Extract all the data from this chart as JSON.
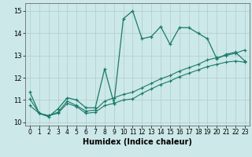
{
  "title": "",
  "xlabel": "Humidex (Indice chaleur)",
  "ylabel": "",
  "background_color": "#cce8e8",
  "grid_color": "#b0cccc",
  "line_color": "#1a7a6a",
  "xlim": [
    -0.5,
    23.5
  ],
  "ylim": [
    9.85,
    15.35
  ],
  "yticks": [
    10,
    11,
    12,
    13,
    14,
    15
  ],
  "xticks": [
    0,
    1,
    2,
    3,
    4,
    5,
    6,
    7,
    8,
    9,
    10,
    11,
    12,
    13,
    14,
    15,
    16,
    17,
    18,
    19,
    20,
    21,
    22,
    23
  ],
  "series1_x": [
    0,
    1,
    2,
    3,
    4,
    5,
    6,
    7,
    8,
    9,
    10,
    11,
    12,
    13,
    14,
    15,
    16,
    17,
    18,
    19,
    20,
    21,
    22,
    23
  ],
  "series1_y": [
    11.35,
    10.4,
    10.25,
    10.6,
    11.1,
    11.0,
    10.65,
    10.65,
    12.4,
    10.85,
    14.65,
    15.0,
    13.75,
    13.85,
    14.3,
    13.5,
    14.25,
    14.25,
    14.0,
    13.75,
    12.85,
    13.05,
    13.15,
    12.75
  ],
  "series2_x": [
    0,
    1,
    2,
    3,
    4,
    5,
    6,
    7,
    8,
    9,
    10,
    11,
    12,
    13,
    14,
    15,
    16,
    17,
    18,
    19,
    20,
    21,
    22,
    23
  ],
  "series2_y": [
    11.05,
    10.4,
    10.3,
    10.45,
    10.95,
    10.75,
    10.5,
    10.55,
    10.95,
    11.1,
    11.25,
    11.35,
    11.55,
    11.75,
    11.95,
    12.1,
    12.3,
    12.45,
    12.6,
    12.8,
    12.9,
    13.0,
    13.1,
    13.25
  ],
  "series3_x": [
    0,
    1,
    2,
    3,
    4,
    5,
    6,
    7,
    8,
    9,
    10,
    11,
    12,
    13,
    14,
    15,
    16,
    17,
    18,
    19,
    20,
    21,
    22,
    23
  ],
  "series3_y": [
    10.75,
    10.4,
    10.3,
    10.4,
    10.85,
    10.7,
    10.4,
    10.45,
    10.75,
    10.85,
    11.0,
    11.05,
    11.3,
    11.5,
    11.7,
    11.85,
    12.05,
    12.2,
    12.35,
    12.5,
    12.6,
    12.7,
    12.75,
    12.7
  ],
  "xlabel_fontsize": 7,
  "tick_fontsize": 5.5,
  "linewidth1": 0.9,
  "linewidth2": 0.8,
  "markersize1": 3,
  "markersize2": 2.5
}
